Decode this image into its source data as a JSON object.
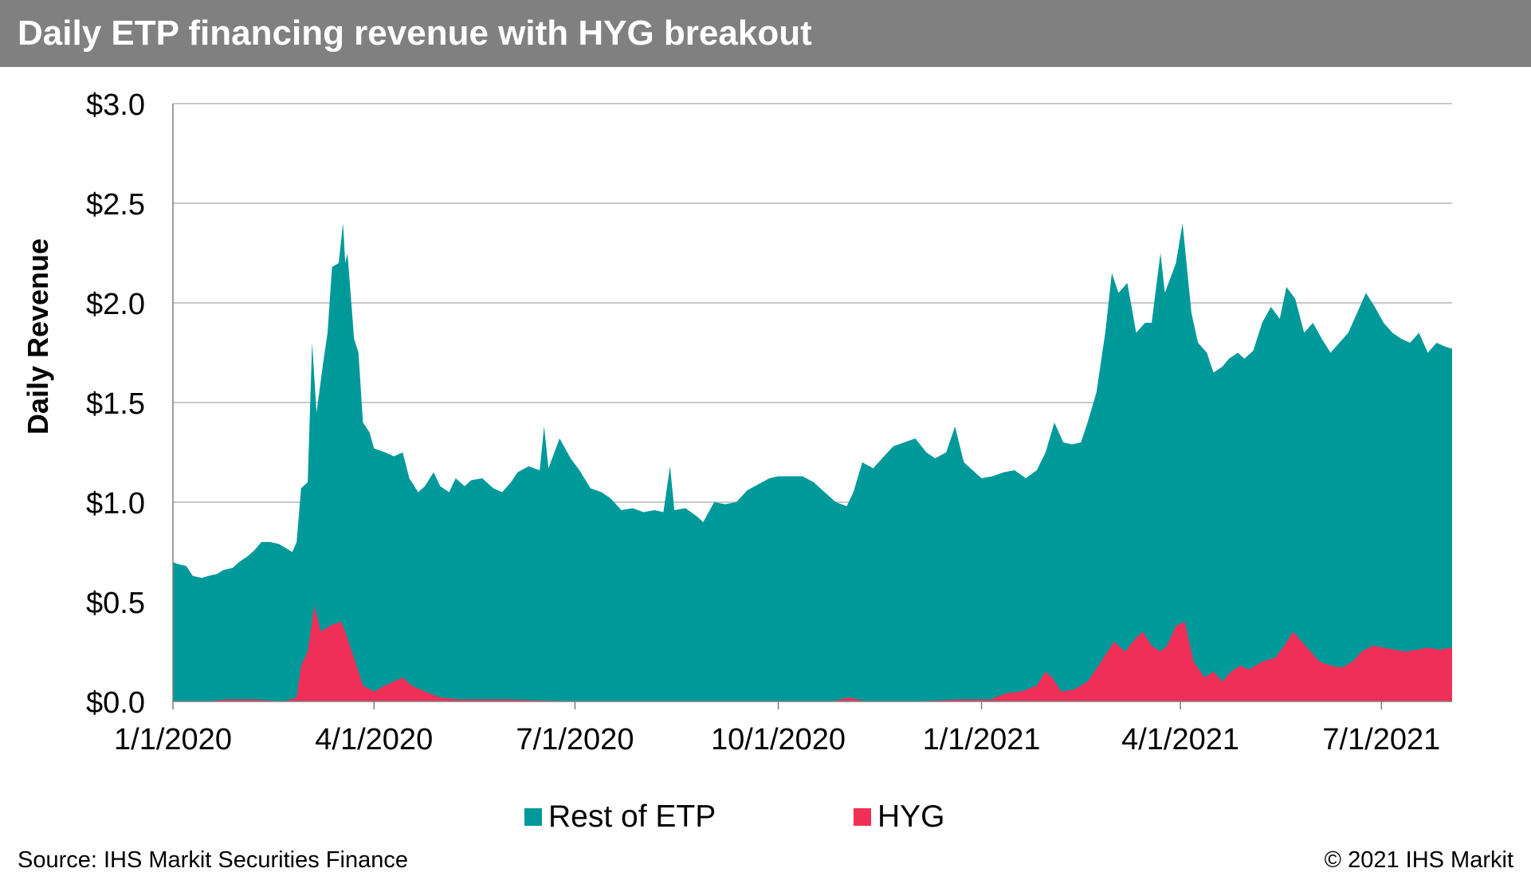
{
  "header": {
    "title": "Daily ETP financing revenue with HYG breakout"
  },
  "footer": {
    "source": "Source: IHS Markit Securities Finance",
    "copyright": "© 2021 IHS Markit"
  },
  "colors": {
    "rest": "#00999a",
    "hyg": "#ef2f58",
    "grid": "#a6a6a6",
    "title_bg": "#808080"
  },
  "chart_data": {
    "type": "area",
    "stacked": true,
    "ylabel": "Daily Revenue",
    "ylim": [
      0,
      3.0
    ],
    "y_ticks": [
      {
        "value": 0.0,
        "label": "$0.0"
      },
      {
        "value": 0.5,
        "label": "$0.5"
      },
      {
        "value": 1.0,
        "label": "$1.0"
      },
      {
        "value": 1.5,
        "label": "$1.5"
      },
      {
        "value": 2.0,
        "label": "$2.0"
      },
      {
        "value": 2.5,
        "label": "$2.5"
      },
      {
        "value": 3.0,
        "label": "$3.0"
      }
    ],
    "xlim": [
      "2020-01-01",
      "2021-08-02"
    ],
    "x_ticks": [
      {
        "date": "2020-01-01",
        "label": "1/1/2020"
      },
      {
        "date": "2020-04-01",
        "label": "4/1/2020"
      },
      {
        "date": "2020-07-01",
        "label": "7/1/2020"
      },
      {
        "date": "2020-10-01",
        "label": "10/1/2020"
      },
      {
        "date": "2021-01-01",
        "label": "1/1/2021"
      },
      {
        "date": "2021-04-01",
        "label": "4/1/2021"
      },
      {
        "date": "2021-07-01",
        "label": "7/1/2021"
      }
    ],
    "grid": true,
    "legend": "bottom-center",
    "series": [
      {
        "name": "Rest of ETP",
        "note": "values are stacked totals (Rest of ETP + HYG)",
        "points": [
          [
            "2020-01-01",
            0.7
          ],
          [
            "2020-01-03",
            0.69
          ],
          [
            "2020-01-07",
            0.68
          ],
          [
            "2020-01-10",
            0.63
          ],
          [
            "2020-01-14",
            0.62
          ],
          [
            "2020-01-17",
            0.63
          ],
          [
            "2020-01-21",
            0.64
          ],
          [
            "2020-01-24",
            0.66
          ],
          [
            "2020-01-28",
            0.67
          ],
          [
            "2020-01-31",
            0.7
          ],
          [
            "2020-02-04",
            0.73
          ],
          [
            "2020-02-07",
            0.76
          ],
          [
            "2020-02-10",
            0.8
          ],
          [
            "2020-02-14",
            0.8
          ],
          [
            "2020-02-18",
            0.79
          ],
          [
            "2020-02-21",
            0.77
          ],
          [
            "2020-02-24",
            0.75
          ],
          [
            "2020-02-26",
            0.8
          ],
          [
            "2020-02-28",
            1.07
          ],
          [
            "2020-03-02",
            1.1
          ],
          [
            "2020-03-04",
            1.8
          ],
          [
            "2020-03-06",
            1.45
          ],
          [
            "2020-03-09",
            1.7
          ],
          [
            "2020-03-11",
            1.85
          ],
          [
            "2020-03-13",
            2.18
          ],
          [
            "2020-03-16",
            2.2
          ],
          [
            "2020-03-18",
            2.4
          ],
          [
            "2020-03-19",
            2.2
          ],
          [
            "2020-03-20",
            2.25
          ],
          [
            "2020-03-23",
            1.82
          ],
          [
            "2020-03-25",
            1.75
          ],
          [
            "2020-03-27",
            1.4
          ],
          [
            "2020-03-30",
            1.35
          ],
          [
            "2020-04-01",
            1.27
          ],
          [
            "2020-04-06",
            1.25
          ],
          [
            "2020-04-10",
            1.23
          ],
          [
            "2020-04-14",
            1.25
          ],
          [
            "2020-04-17",
            1.12
          ],
          [
            "2020-04-21",
            1.05
          ],
          [
            "2020-04-24",
            1.08
          ],
          [
            "2020-04-28",
            1.15
          ],
          [
            "2020-05-01",
            1.08
          ],
          [
            "2020-05-05",
            1.05
          ],
          [
            "2020-05-08",
            1.12
          ],
          [
            "2020-05-12",
            1.08
          ],
          [
            "2020-05-15",
            1.11
          ],
          [
            "2020-05-20",
            1.12
          ],
          [
            "2020-05-25",
            1.07
          ],
          [
            "2020-05-29",
            1.05
          ],
          [
            "2020-06-02",
            1.1
          ],
          [
            "2020-06-05",
            1.15
          ],
          [
            "2020-06-10",
            1.18
          ],
          [
            "2020-06-15",
            1.16
          ],
          [
            "2020-06-17",
            1.38
          ],
          [
            "2020-06-19",
            1.17
          ],
          [
            "2020-06-24",
            1.32
          ],
          [
            "2020-06-29",
            1.22
          ],
          [
            "2020-07-03",
            1.16
          ],
          [
            "2020-07-08",
            1.07
          ],
          [
            "2020-07-13",
            1.05
          ],
          [
            "2020-07-17",
            1.02
          ],
          [
            "2020-07-22",
            0.96
          ],
          [
            "2020-07-27",
            0.97
          ],
          [
            "2020-08-01",
            0.95
          ],
          [
            "2020-08-06",
            0.96
          ],
          [
            "2020-08-10",
            0.95
          ],
          [
            "2020-08-13",
            1.18
          ],
          [
            "2020-08-15",
            0.96
          ],
          [
            "2020-08-20",
            0.97
          ],
          [
            "2020-08-25",
            0.93
          ],
          [
            "2020-08-28",
            0.9
          ],
          [
            "2020-09-02",
            1.0
          ],
          [
            "2020-09-07",
            0.99
          ],
          [
            "2020-09-12",
            1.0
          ],
          [
            "2020-09-17",
            1.06
          ],
          [
            "2020-09-22",
            1.09
          ],
          [
            "2020-09-27",
            1.12
          ],
          [
            "2020-10-01",
            1.13
          ],
          [
            "2020-10-06",
            1.13
          ],
          [
            "2020-10-12",
            1.13
          ],
          [
            "2020-10-17",
            1.1
          ],
          [
            "2020-10-22",
            1.05
          ],
          [
            "2020-10-27",
            1.0
          ],
          [
            "2020-11-01",
            0.98
          ],
          [
            "2020-11-04",
            1.05
          ],
          [
            "2020-11-08",
            1.2
          ],
          [
            "2020-11-13",
            1.17
          ],
          [
            "2020-11-17",
            1.22
          ],
          [
            "2020-11-22",
            1.28
          ],
          [
            "2020-11-27",
            1.3
          ],
          [
            "2020-12-02",
            1.32
          ],
          [
            "2020-12-07",
            1.25
          ],
          [
            "2020-12-11",
            1.22
          ],
          [
            "2020-12-16",
            1.25
          ],
          [
            "2020-12-20",
            1.38
          ],
          [
            "2020-12-24",
            1.2
          ],
          [
            "2020-12-29",
            1.15
          ],
          [
            "2021-01-01",
            1.12
          ],
          [
            "2021-01-06",
            1.13
          ],
          [
            "2021-01-11",
            1.15
          ],
          [
            "2021-01-16",
            1.16
          ],
          [
            "2021-01-21",
            1.12
          ],
          [
            "2021-01-26",
            1.16
          ],
          [
            "2021-01-30",
            1.25
          ],
          [
            "2021-02-03",
            1.4
          ],
          [
            "2021-02-07",
            1.3
          ],
          [
            "2021-02-11",
            1.29
          ],
          [
            "2021-02-15",
            1.3
          ],
          [
            "2021-02-18",
            1.4
          ],
          [
            "2021-02-22",
            1.55
          ],
          [
            "2021-02-26",
            1.85
          ],
          [
            "2021-03-01",
            2.15
          ],
          [
            "2021-03-04",
            2.05
          ],
          [
            "2021-03-08",
            2.1
          ],
          [
            "2021-03-12",
            1.85
          ],
          [
            "2021-03-16",
            1.9
          ],
          [
            "2021-03-19",
            1.9
          ],
          [
            "2021-03-23",
            2.25
          ],
          [
            "2021-03-25",
            2.05
          ],
          [
            "2021-03-30",
            2.2
          ],
          [
            "2021-04-02",
            2.4
          ],
          [
            "2021-04-06",
            1.95
          ],
          [
            "2021-04-09",
            1.8
          ],
          [
            "2021-04-13",
            1.75
          ],
          [
            "2021-04-16",
            1.65
          ],
          [
            "2021-04-20",
            1.68
          ],
          [
            "2021-04-23",
            1.72
          ],
          [
            "2021-04-27",
            1.75
          ],
          [
            "2021-04-30",
            1.72
          ],
          [
            "2021-05-04",
            1.76
          ],
          [
            "2021-05-08",
            1.9
          ],
          [
            "2021-05-12",
            1.98
          ],
          [
            "2021-05-16",
            1.92
          ],
          [
            "2021-05-19",
            2.08
          ],
          [
            "2021-05-23",
            2.02
          ],
          [
            "2021-05-27",
            1.85
          ],
          [
            "2021-05-31",
            1.9
          ],
          [
            "2021-06-04",
            1.82
          ],
          [
            "2021-06-08",
            1.75
          ],
          [
            "2021-06-12",
            1.8
          ],
          [
            "2021-06-16",
            1.85
          ],
          [
            "2021-06-20",
            1.95
          ],
          [
            "2021-06-24",
            2.05
          ],
          [
            "2021-06-28",
            1.98
          ],
          [
            "2021-07-02",
            1.9
          ],
          [
            "2021-07-06",
            1.85
          ],
          [
            "2021-07-10",
            1.82
          ],
          [
            "2021-07-14",
            1.8
          ],
          [
            "2021-07-18",
            1.85
          ],
          [
            "2021-07-22",
            1.75
          ],
          [
            "2021-07-26",
            1.8
          ],
          [
            "2021-07-30",
            1.78
          ],
          [
            "2021-08-02",
            1.77
          ]
        ]
      },
      {
        "name": "HYG",
        "points": [
          [
            "2020-01-01",
            0.0
          ],
          [
            "2020-01-15",
            0.0
          ],
          [
            "2020-01-25",
            0.01
          ],
          [
            "2020-02-07",
            0.01
          ],
          [
            "2020-02-20",
            0.0
          ],
          [
            "2020-02-26",
            0.02
          ],
          [
            "2020-02-28",
            0.18
          ],
          [
            "2020-03-02",
            0.25
          ],
          [
            "2020-03-05",
            0.48
          ],
          [
            "2020-03-08",
            0.35
          ],
          [
            "2020-03-12",
            0.38
          ],
          [
            "2020-03-17",
            0.4
          ],
          [
            "2020-03-19",
            0.35
          ],
          [
            "2020-03-22",
            0.25
          ],
          [
            "2020-03-25",
            0.15
          ],
          [
            "2020-03-27",
            0.08
          ],
          [
            "2020-04-01",
            0.05
          ],
          [
            "2020-04-06",
            0.08
          ],
          [
            "2020-04-10",
            0.1
          ],
          [
            "2020-04-14",
            0.12
          ],
          [
            "2020-04-18",
            0.08
          ],
          [
            "2020-04-24",
            0.05
          ],
          [
            "2020-05-01",
            0.02
          ],
          [
            "2020-05-10",
            0.01
          ],
          [
            "2020-06-01",
            0.01
          ],
          [
            "2020-07-01",
            0.0
          ],
          [
            "2020-08-01",
            0.0
          ],
          [
            "2020-09-01",
            0.0
          ],
          [
            "2020-10-01",
            0.0
          ],
          [
            "2020-10-25",
            0.0
          ],
          [
            "2020-11-02",
            0.02
          ],
          [
            "2020-11-10",
            0.0
          ],
          [
            "2020-12-01",
            0.0
          ],
          [
            "2020-12-20",
            0.01
          ],
          [
            "2021-01-05",
            0.01
          ],
          [
            "2021-01-12",
            0.04
          ],
          [
            "2021-01-19",
            0.05
          ],
          [
            "2021-01-26",
            0.08
          ],
          [
            "2021-01-30",
            0.15
          ],
          [
            "2021-02-02",
            0.12
          ],
          [
            "2021-02-06",
            0.05
          ],
          [
            "2021-02-12",
            0.06
          ],
          [
            "2021-02-18",
            0.1
          ],
          [
            "2021-02-23",
            0.18
          ],
          [
            "2021-02-27",
            0.25
          ],
          [
            "2021-03-02",
            0.3
          ],
          [
            "2021-03-07",
            0.25
          ],
          [
            "2021-03-12",
            0.32
          ],
          [
            "2021-03-15",
            0.35
          ],
          [
            "2021-03-19",
            0.28
          ],
          [
            "2021-03-23",
            0.25
          ],
          [
            "2021-03-26",
            0.28
          ],
          [
            "2021-03-30",
            0.38
          ],
          [
            "2021-04-03",
            0.4
          ],
          [
            "2021-04-07",
            0.2
          ],
          [
            "2021-04-12",
            0.12
          ],
          [
            "2021-04-16",
            0.15
          ],
          [
            "2021-04-20",
            0.1
          ],
          [
            "2021-04-24",
            0.15
          ],
          [
            "2021-04-28",
            0.18
          ],
          [
            "2021-05-02",
            0.16
          ],
          [
            "2021-05-08",
            0.2
          ],
          [
            "2021-05-14",
            0.22
          ],
          [
            "2021-05-18",
            0.28
          ],
          [
            "2021-05-22",
            0.35
          ],
          [
            "2021-05-26",
            0.3
          ],
          [
            "2021-05-30",
            0.25
          ],
          [
            "2021-06-03",
            0.2
          ],
          [
            "2021-06-08",
            0.18
          ],
          [
            "2021-06-13",
            0.17
          ],
          [
            "2021-06-18",
            0.2
          ],
          [
            "2021-06-22",
            0.25
          ],
          [
            "2021-06-27",
            0.28
          ],
          [
            "2021-07-02",
            0.27
          ],
          [
            "2021-07-07",
            0.26
          ],
          [
            "2021-07-12",
            0.25
          ],
          [
            "2021-07-17",
            0.26
          ],
          [
            "2021-07-22",
            0.27
          ],
          [
            "2021-07-27",
            0.26
          ],
          [
            "2021-08-02",
            0.27
          ]
        ]
      }
    ]
  }
}
